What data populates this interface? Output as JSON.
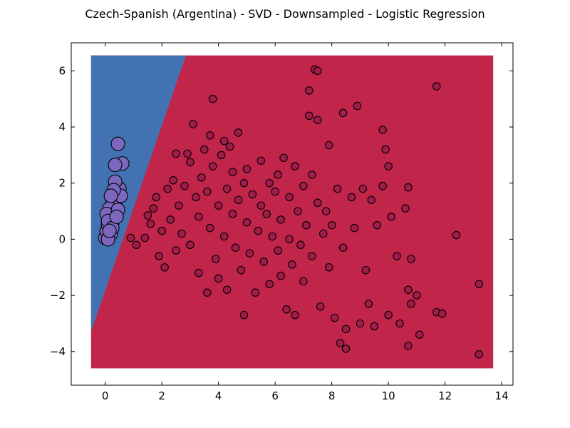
{
  "chart_data": {
    "type": "scatter",
    "title": "Czech-Spanish (Argentina) - SVD - Downsampled - Logistic Regression",
    "xlabel": "",
    "ylabel": "",
    "xlim": [
      -1.2,
      14.4
    ],
    "ylim": [
      -5.2,
      7.0
    ],
    "xticks": [
      0,
      2,
      4,
      6,
      8,
      10,
      12,
      14
    ],
    "yticks": [
      -4,
      -2,
      0,
      2,
      4,
      6
    ],
    "xtick_labels": [
      "0",
      "2",
      "4",
      "6",
      "8",
      "10",
      "12",
      "14"
    ],
    "ytick_labels": [
      "−4",
      "−2",
      "0",
      "2",
      "4",
      "6"
    ],
    "grid": false,
    "legend": "none",
    "decision_regions": {
      "extent": {
        "x": [
          -0.5,
          13.7
        ],
        "y": [
          -4.6,
          6.55
        ]
      },
      "boundary": [
        [
          -0.5,
          -3.3
        ],
        [
          2.85,
          6.55
        ]
      ],
      "left_region_color": "#4272b1",
      "right_region_color": "#c1264a"
    },
    "series": [
      {
        "color": "#7b68be",
        "size": "large",
        "points": [
          [
            0.0,
            0.05
          ],
          [
            0.05,
            0.3
          ],
          [
            0.1,
            0.5
          ],
          [
            0.15,
            0.7
          ],
          [
            0.2,
            0.85
          ],
          [
            0.25,
            0.6
          ],
          [
            0.3,
            1.0
          ],
          [
            0.35,
            1.2
          ],
          [
            0.25,
            1.4
          ],
          [
            0.4,
            1.5
          ],
          [
            0.5,
            1.8
          ],
          [
            0.3,
            1.3
          ],
          [
            0.15,
            1.1
          ],
          [
            0.2,
            0.2
          ],
          [
            0.05,
            0.9
          ],
          [
            0.1,
            0.65
          ],
          [
            0.45,
            1.05
          ],
          [
            0.55,
            1.55
          ],
          [
            0.35,
            2.05
          ],
          [
            0.3,
            1.75
          ],
          [
            0.6,
            2.7
          ],
          [
            0.45,
            3.4
          ],
          [
            0.35,
            2.65
          ],
          [
            0.25,
            0.4
          ],
          [
            0.2,
            1.55
          ],
          [
            0.1,
            0.0
          ],
          [
            0.4,
            0.8
          ],
          [
            0.15,
            0.3
          ]
        ]
      },
      {
        "color": "#a01c49",
        "size": "small",
        "points": [
          [
            0.9,
            0.05
          ],
          [
            1.1,
            -0.2
          ],
          [
            1.4,
            0.05
          ],
          [
            1.5,
            0.85
          ],
          [
            1.6,
            0.55
          ],
          [
            1.7,
            1.1
          ],
          [
            1.8,
            1.5
          ],
          [
            1.9,
            -0.6
          ],
          [
            2.0,
            0.3
          ],
          [
            2.1,
            -1.0
          ],
          [
            2.2,
            1.8
          ],
          [
            2.3,
            0.7
          ],
          [
            2.4,
            2.1
          ],
          [
            2.5,
            -0.4
          ],
          [
            2.5,
            3.05
          ],
          [
            2.6,
            1.2
          ],
          [
            2.7,
            0.2
          ],
          [
            2.8,
            1.9
          ],
          [
            2.9,
            3.05
          ],
          [
            3.0,
            2.75
          ],
          [
            3.0,
            -0.2
          ],
          [
            3.1,
            4.1
          ],
          [
            3.2,
            1.5
          ],
          [
            3.3,
            0.8
          ],
          [
            3.3,
            -1.2
          ],
          [
            3.4,
            2.2
          ],
          [
            3.5,
            3.2
          ],
          [
            3.6,
            1.7
          ],
          [
            3.6,
            -1.9
          ],
          [
            3.7,
            3.7
          ],
          [
            3.7,
            0.4
          ],
          [
            3.8,
            5.0
          ],
          [
            3.8,
            2.6
          ],
          [
            3.9,
            -0.7
          ],
          [
            4.0,
            1.2
          ],
          [
            4.0,
            -1.4
          ],
          [
            4.1,
            3.0
          ],
          [
            4.2,
            3.5
          ],
          [
            4.2,
            0.1
          ],
          [
            4.3,
            1.8
          ],
          [
            4.3,
            -1.8
          ],
          [
            4.4,
            3.3
          ],
          [
            4.5,
            2.4
          ],
          [
            4.5,
            0.9
          ],
          [
            4.6,
            -0.3
          ],
          [
            4.7,
            3.8
          ],
          [
            4.7,
            1.4
          ],
          [
            4.8,
            -1.1
          ],
          [
            4.9,
            2.0
          ],
          [
            4.9,
            -2.7
          ],
          [
            5.0,
            0.6
          ],
          [
            5.0,
            2.5
          ],
          [
            5.1,
            -0.5
          ],
          [
            5.2,
            1.6
          ],
          [
            5.3,
            -1.9
          ],
          [
            5.4,
            0.3
          ],
          [
            5.5,
            2.8
          ],
          [
            5.5,
            1.2
          ],
          [
            5.6,
            -0.8
          ],
          [
            5.7,
            0.9
          ],
          [
            5.8,
            2.0
          ],
          [
            5.8,
            -1.6
          ],
          [
            5.9,
            0.1
          ],
          [
            6.0,
            1.7
          ],
          [
            6.1,
            -0.4
          ],
          [
            6.1,
            2.3
          ],
          [
            6.2,
            0.7
          ],
          [
            6.2,
            -1.3
          ],
          [
            6.3,
            2.9
          ],
          [
            6.4,
            -2.5
          ],
          [
            6.5,
            1.5
          ],
          [
            6.5,
            0.0
          ],
          [
            6.6,
            -0.9
          ],
          [
            6.7,
            2.6
          ],
          [
            6.7,
            -2.7
          ],
          [
            6.8,
            1.0
          ],
          [
            6.9,
            -0.2
          ],
          [
            7.0,
            1.9
          ],
          [
            7.0,
            -1.5
          ],
          [
            7.1,
            0.5
          ],
          [
            7.2,
            5.3
          ],
          [
            7.2,
            4.4
          ],
          [
            7.3,
            2.3
          ],
          [
            7.3,
            -0.6
          ],
          [
            7.4,
            6.05
          ],
          [
            7.5,
            6.0
          ],
          [
            7.5,
            4.25
          ],
          [
            7.5,
            1.3
          ],
          [
            7.6,
            -2.4
          ],
          [
            7.7,
            0.2
          ],
          [
            7.8,
            1.0
          ],
          [
            7.9,
            3.35
          ],
          [
            7.9,
            -1.0
          ],
          [
            8.0,
            0.5
          ],
          [
            8.1,
            -2.8
          ],
          [
            8.2,
            1.8
          ],
          [
            8.3,
            -3.7
          ],
          [
            8.4,
            4.5
          ],
          [
            8.4,
            -0.3
          ],
          [
            8.5,
            -3.2
          ],
          [
            8.5,
            -3.9
          ],
          [
            8.7,
            1.5
          ],
          [
            8.8,
            0.4
          ],
          [
            8.9,
            4.75
          ],
          [
            9.0,
            -3.0
          ],
          [
            9.1,
            1.8
          ],
          [
            9.2,
            -1.1
          ],
          [
            9.3,
            -2.3
          ],
          [
            9.4,
            1.4
          ],
          [
            9.5,
            -3.1
          ],
          [
            9.6,
            0.5
          ],
          [
            9.8,
            3.9
          ],
          [
            9.8,
            1.9
          ],
          [
            9.9,
            3.2
          ],
          [
            10.0,
            -2.7
          ],
          [
            10.0,
            2.6
          ],
          [
            10.1,
            0.8
          ],
          [
            10.3,
            -0.6
          ],
          [
            10.4,
            -3.0
          ],
          [
            10.6,
            1.1
          ],
          [
            10.7,
            -1.8
          ],
          [
            10.7,
            -3.8
          ],
          [
            10.7,
            1.85
          ],
          [
            10.8,
            -2.3
          ],
          [
            10.8,
            -0.7
          ],
          [
            11.0,
            -2.0
          ],
          [
            11.1,
            -3.4
          ],
          [
            11.7,
            5.45
          ],
          [
            11.7,
            -2.6
          ],
          [
            11.9,
            -2.65
          ],
          [
            12.4,
            0.15
          ],
          [
            13.2,
            -1.6
          ],
          [
            13.2,
            -4.1
          ]
        ]
      }
    ]
  }
}
